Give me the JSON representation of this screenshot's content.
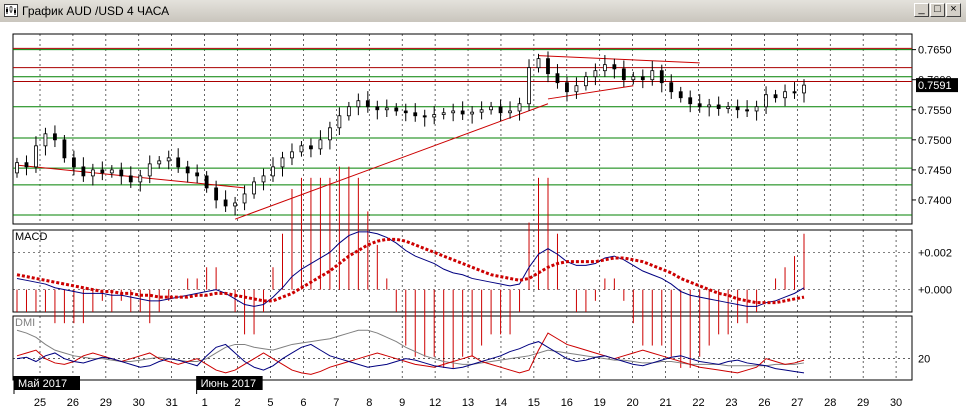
{
  "window": {
    "title": "График AUD /USD  4 ЧАСА",
    "buttons": {
      "minimize": "_",
      "maximize": "□",
      "close": "×"
    }
  },
  "colors": {
    "background": "#ffffff",
    "panel_grid": "#000000",
    "horizontal_green": "#008000",
    "horizontal_red": "#aa0000",
    "trendline": "#cc0000",
    "candles": "#000000",
    "macd_line": "#000080",
    "macd_signal": "#cc0000",
    "macd_hist": "#cc0000",
    "dmi_plus": "#000080",
    "dmi_minus": "#cc0000",
    "adx": "#808080",
    "price_marker_bg": "#000000",
    "price_marker_fg": "#ffffff"
  },
  "chart_data": {
    "type": "candlestick",
    "symbol": "AUD/USD",
    "timeframe": "4 ЧАСА",
    "price_axis": {
      "ylim": [
        0.736,
        0.7676
      ],
      "ticks": [
        "0.7650",
        "0.7600",
        "0.7550",
        "0.7500",
        "0.7450",
        "0.7400"
      ],
      "tick_values": [
        0.765,
        0.76,
        0.755,
        0.75,
        0.745,
        0.74
      ],
      "current_price_label": "0.7591",
      "current_price": 0.7591
    },
    "horizontal_levels": {
      "green": [
        0.765,
        0.7605,
        0.7555,
        0.7503,
        0.7453,
        0.7425,
        0.7375
      ],
      "red": [
        0.7652,
        0.762,
        0.7597
      ]
    },
    "x_axis": {
      "tick_labels": [
        "25",
        "26",
        "29",
        "30",
        "31",
        "1",
        "2",
        "5",
        "6",
        "7",
        "8",
        "9",
        "12",
        "13",
        "14",
        "15",
        "16",
        "19",
        "20",
        "21",
        "22",
        "23",
        "26",
        "27",
        "28",
        "29",
        "30"
      ],
      "month_labels": [
        "Май 2017",
        "Июнь 2017"
      ],
      "month_label_positions": [
        0,
        5
      ]
    },
    "candles": [
      [
        0.7445,
        0.7462
      ],
      [
        0.7462,
        0.7455
      ],
      [
        0.7455,
        0.749
      ],
      [
        0.749,
        0.751
      ],
      [
        0.751,
        0.75
      ],
      [
        0.75,
        0.747
      ],
      [
        0.747,
        0.7455
      ],
      [
        0.7455,
        0.744
      ],
      [
        0.744,
        0.745
      ],
      [
        0.745,
        0.7445
      ],
      [
        0.7445,
        0.745
      ],
      [
        0.745,
        0.744
      ],
      [
        0.744,
        0.743
      ],
      [
        0.743,
        0.744
      ],
      [
        0.744,
        0.746
      ],
      [
        0.746,
        0.7465
      ],
      [
        0.7465,
        0.747
      ],
      [
        0.747,
        0.7455
      ],
      [
        0.7455,
        0.7445
      ],
      [
        0.7445,
        0.744
      ],
      [
        0.744,
        0.742
      ],
      [
        0.742,
        0.74
      ],
      [
        0.74,
        0.739
      ],
      [
        0.739,
        0.7395
      ],
      [
        0.7395,
        0.741
      ],
      [
        0.741,
        0.743
      ],
      [
        0.743,
        0.744
      ],
      [
        0.744,
        0.7455
      ],
      [
        0.7455,
        0.747
      ],
      [
        0.747,
        0.748
      ],
      [
        0.748,
        0.749
      ],
      [
        0.749,
        0.7485
      ],
      [
        0.7485,
        0.75
      ],
      [
        0.75,
        0.752
      ],
      [
        0.752,
        0.754
      ],
      [
        0.754,
        0.7555
      ],
      [
        0.7555,
        0.7565
      ],
      [
        0.7565,
        0.7555
      ],
      [
        0.7555,
        0.755
      ],
      [
        0.755,
        0.7553
      ],
      [
        0.7553,
        0.7548
      ],
      [
        0.7548,
        0.7545
      ],
      [
        0.7545,
        0.754
      ],
      [
        0.754,
        0.7538
      ],
      [
        0.7538,
        0.7542
      ],
      [
        0.7542,
        0.7545
      ],
      [
        0.7545,
        0.7548
      ],
      [
        0.7548,
        0.7543
      ],
      [
        0.7543,
        0.7546
      ],
      [
        0.7546,
        0.755
      ],
      [
        0.755,
        0.7555
      ],
      [
        0.7555,
        0.7545
      ],
      [
        0.7545,
        0.7548
      ],
      [
        0.7548,
        0.756
      ],
      [
        0.756,
        0.762
      ],
      [
        0.762,
        0.7635
      ],
      [
        0.7635,
        0.761
      ],
      [
        0.761,
        0.7595
      ],
      [
        0.7595,
        0.758
      ],
      [
        0.758,
        0.759
      ],
      [
        0.759,
        0.7605
      ],
      [
        0.7605,
        0.7615
      ],
      [
        0.7615,
        0.7625
      ],
      [
        0.7625,
        0.7618
      ],
      [
        0.7618,
        0.76
      ],
      [
        0.76,
        0.7605
      ],
      [
        0.7605,
        0.76
      ],
      [
        0.76,
        0.7615
      ],
      [
        0.7615,
        0.7595
      ],
      [
        0.7595,
        0.758
      ],
      [
        0.758,
        0.757
      ],
      [
        0.757,
        0.756
      ],
      [
        0.756,
        0.7555
      ],
      [
        0.7555,
        0.7558
      ],
      [
        0.7558,
        0.7552
      ],
      [
        0.7552,
        0.7555
      ],
      [
        0.7555,
        0.755
      ],
      [
        0.755,
        0.7548
      ],
      [
        0.7548,
        0.7555
      ],
      [
        0.7555,
        0.7575
      ],
      [
        0.7575,
        0.757
      ],
      [
        0.757,
        0.758
      ],
      [
        0.758,
        0.7578
      ],
      [
        0.7578,
        0.7591
      ]
    ],
    "trendlines": [
      {
        "from": [
          0,
          0.7458
        ],
        "to": [
          24,
          0.742
        ]
      },
      {
        "from": [
          23,
          0.7368
        ],
        "to": [
          56,
          0.756
        ]
      },
      {
        "from": [
          56,
          0.7568
        ],
        "to": [
          65,
          0.759
        ]
      },
      {
        "from": [
          55,
          0.764
        ],
        "to": [
          72,
          0.7628
        ]
      }
    ],
    "macd": {
      "label": "MACD",
      "ticks": [
        "+0.002",
        "+0.000"
      ],
      "tick_values": [
        0.002,
        0.0
      ],
      "ylim": [
        -0.0012,
        0.0032
      ],
      "macd": [
        0.0006,
        0.0005,
        0.0004,
        0.0003,
        0.0001,
        0.0,
        -0.0001,
        -0.0002,
        -0.0002,
        -0.0002,
        -0.0003,
        -0.0003,
        -0.0004,
        -0.0005,
        -0.0006,
        -0.0006,
        -0.0005,
        -0.0004,
        -0.0003,
        -0.0002,
        -0.0001,
        0.0,
        -0.0002,
        -0.0005,
        -0.0008,
        -0.0009,
        -0.0008,
        -0.0004,
        0.0001,
        0.0007,
        0.0011,
        0.0014,
        0.0017,
        0.002,
        0.0025,
        0.0029,
        0.0031,
        0.0031,
        0.003,
        0.0028,
        0.0025,
        0.0021,
        0.0018,
        0.0016,
        0.0014,
        0.0011,
        0.0009,
        0.0008,
        0.0006,
        0.0005,
        0.0004,
        0.0003,
        0.0002,
        0.0003,
        0.0012,
        0.0019,
        0.0022,
        0.0019,
        0.0015,
        0.0013,
        0.0013,
        0.0014,
        0.0017,
        0.0018,
        0.0016,
        0.0013,
        0.001,
        0.0008,
        0.0006,
        0.0003,
        -0.0001,
        -0.0003,
        -0.0004,
        -0.0005,
        -0.0006,
        -0.0007,
        -0.0008,
        -0.0009,
        -0.0009,
        -0.0007,
        -0.0006,
        -0.0004,
        -0.0002,
        0.0001
      ],
      "signal": [
        0.0008,
        0.0007,
        0.0006,
        0.0005,
        0.0004,
        0.0003,
        0.0002,
        0.0001,
        0.0,
        -0.0001,
        -0.0001,
        -0.0002,
        -0.0002,
        -0.0003,
        -0.0003,
        -0.0004,
        -0.0004,
        -0.0004,
        -0.0004,
        -0.0003,
        -0.0003,
        -0.0002,
        -0.0002,
        -0.0003,
        -0.0004,
        -0.0005,
        -0.0006,
        -0.0006,
        -0.0004,
        -0.0002,
        0.0001,
        0.0004,
        0.0007,
        0.001,
        0.0014,
        0.0018,
        0.0021,
        0.0024,
        0.0026,
        0.0027,
        0.0027,
        0.0026,
        0.0024,
        0.0022,
        0.002,
        0.0018,
        0.0016,
        0.0014,
        0.0012,
        0.001,
        0.0008,
        0.0007,
        0.0006,
        0.0005,
        0.0006,
        0.0009,
        0.0012,
        0.0014,
        0.0015,
        0.0015,
        0.0015,
        0.0015,
        0.0016,
        0.0017,
        0.0017,
        0.0016,
        0.0015,
        0.0013,
        0.0011,
        0.0009,
        0.0006,
        0.0004,
        0.0002,
        0.0,
        -0.0002,
        -0.0003,
        -0.0005,
        -0.0006,
        -0.0007,
        -0.0007,
        -0.0007,
        -0.0006,
        -0.0005,
        -0.0004
      ]
    },
    "dmi": {
      "label": "DMI",
      "ticks": [
        "20"
      ],
      "tick_values": [
        20
      ],
      "ylim": [
        5,
        50
      ],
      "plus_di": [
        20,
        21,
        18,
        22,
        24,
        20,
        18,
        17,
        19,
        21,
        20,
        18,
        16,
        14,
        15,
        18,
        20,
        19,
        17,
        15,
        22,
        28,
        30,
        24,
        18,
        14,
        12,
        15,
        20,
        24,
        28,
        30,
        26,
        22,
        20,
        18,
        16,
        14,
        15,
        16,
        18,
        20,
        19,
        17,
        15,
        14,
        13,
        14,
        16,
        18,
        20,
        22,
        25,
        27,
        30,
        32,
        28,
        24,
        20,
        18,
        19,
        21,
        22,
        20,
        18,
        16,
        15,
        17,
        19,
        21,
        22,
        20,
        18,
        17,
        16,
        18,
        19,
        17,
        16,
        15,
        13,
        12,
        11,
        10
      ],
      "minus_di": [
        22,
        24,
        26,
        20,
        17,
        16,
        18,
        22,
        24,
        22,
        20,
        18,
        20,
        22,
        24,
        20,
        18,
        16,
        18,
        20,
        16,
        12,
        10,
        12,
        16,
        20,
        24,
        20,
        16,
        12,
        10,
        9,
        11,
        14,
        16,
        18,
        20,
        22,
        24,
        22,
        20,
        18,
        16,
        15,
        14,
        16,
        18,
        20,
        22,
        18,
        16,
        14,
        12,
        10,
        12,
        26,
        38,
        34,
        30,
        28,
        26,
        24,
        22,
        20,
        22,
        24,
        26,
        24,
        22,
        20,
        18,
        16,
        14,
        13,
        12,
        11,
        10,
        12,
        14,
        20,
        18,
        16,
        17,
        19
      ],
      "adx": [
        40,
        38,
        35,
        30,
        26,
        24,
        22,
        21,
        20,
        20,
        19,
        18,
        18,
        19,
        20,
        21,
        20,
        19,
        18,
        18,
        20,
        24,
        28,
        30,
        30,
        28,
        27,
        26,
        28,
        30,
        31,
        32,
        33,
        34,
        36,
        38,
        40,
        40,
        38,
        35,
        32,
        28,
        25,
        22,
        20,
        18,
        17,
        16,
        16,
        17,
        18,
        19,
        20,
        21,
        22,
        24,
        26,
        25,
        24,
        23,
        22,
        21,
        20,
        19,
        19,
        18,
        17,
        17,
        18,
        18,
        17,
        16,
        16,
        16,
        16,
        15,
        15,
        15,
        15,
        15,
        16,
        16,
        16,
        17
      ]
    }
  }
}
